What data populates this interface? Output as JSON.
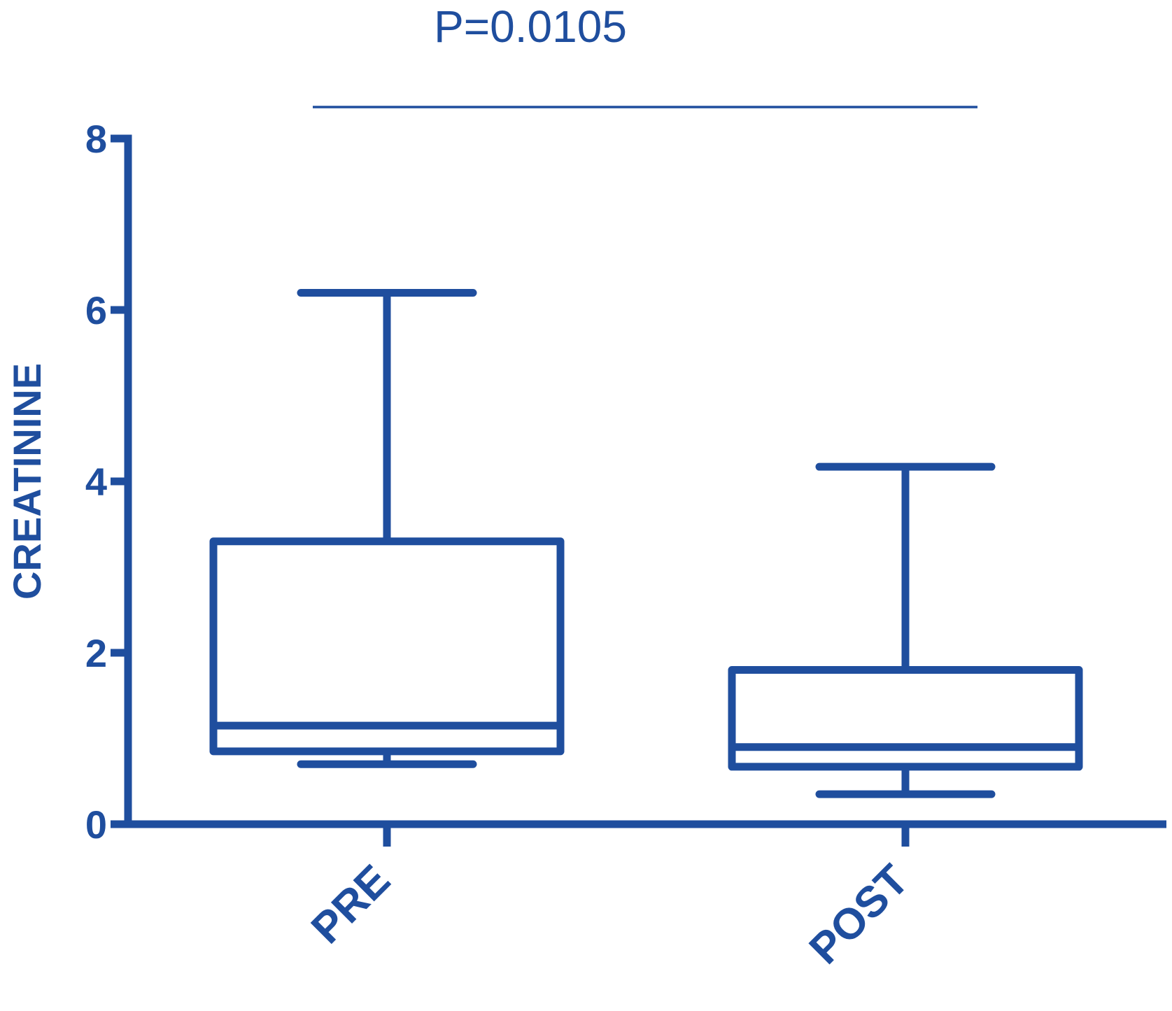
{
  "chart_data": {
    "type": "box",
    "ylabel": "CREATININE",
    "xlabel": "",
    "ylim": [
      0,
      8
    ],
    "yticks": [
      "0",
      "2",
      "4",
      "6",
      "8"
    ],
    "categories": [
      "PRE",
      "POST"
    ],
    "boxes": [
      {
        "category": "PRE",
        "whisker_low": 0.7,
        "q1": 0.85,
        "median": 1.15,
        "q3": 3.3,
        "whisker_high": 6.2
      },
      {
        "category": "POST",
        "whisker_low": 0.35,
        "q1": 0.67,
        "median": 0.9,
        "q3": 1.8,
        "whisker_high": 4.17
      }
    ],
    "annotation": "P=0.0105",
    "color": "#1f4e9e"
  }
}
